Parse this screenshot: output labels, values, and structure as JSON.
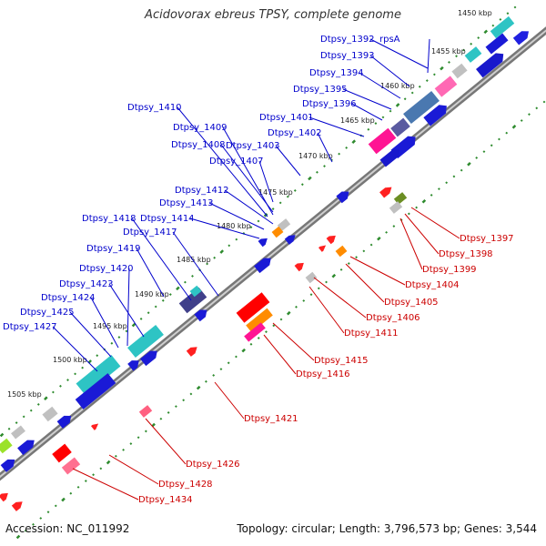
{
  "title": "Acidovorax ebreus TPSY, complete genome",
  "footer": {
    "accession": "Accession: NC_011992",
    "summary": "Topology: circular; Length: 3,796,573 bp; Genes: 3,544"
  },
  "colors": {
    "forward_label": "#0000cc",
    "reverse_label": "#cc0000",
    "backbone": "#888888",
    "tick_dots": "#2e8b2e"
  },
  "ticks": [
    "1450 kbp",
    "1455 kbp",
    "1460 kbp",
    "1465 kbp",
    "1470 kbp",
    "1475 kbp",
    "1480 kbp",
    "1485 kbp",
    "1490 kbp",
    "1495 kbp",
    "1500 kbp",
    "1505 kbp"
  ],
  "forward_labels": [
    "Dtpsy_1392",
    "rpsA",
    "Dtpsy_1393",
    "Dtpsy_1394",
    "Dtpsy_1395",
    "Dtpsy_1396",
    "Dtpsy_1401",
    "Dtpsy_1402",
    "Dtpsy_1403",
    "Dtpsy_1407",
    "Dtpsy_1408",
    "Dtpsy_1409",
    "Dtpsy_1410",
    "Dtpsy_1412",
    "Dtpsy_1413",
    "Dtpsy_1414",
    "Dtpsy_1417",
    "Dtpsy_1418",
    "Dtpsy_1419",
    "Dtpsy_1420",
    "Dtpsy_1423",
    "Dtpsy_1424",
    "Dtpsy_1425",
    "Dtpsy_1427"
  ],
  "reverse_labels": [
    "Dtpsy_1397",
    "Dtpsy_1398",
    "Dtpsy_1399",
    "Dtpsy_1404",
    "Dtpsy_1405",
    "Dtpsy_1406",
    "Dtpsy_1411",
    "Dtpsy_1415",
    "Dtpsy_1416",
    "Dtpsy_1421",
    "Dtpsy_1426",
    "Dtpsy_1428",
    "Dtpsy_1434"
  ]
}
